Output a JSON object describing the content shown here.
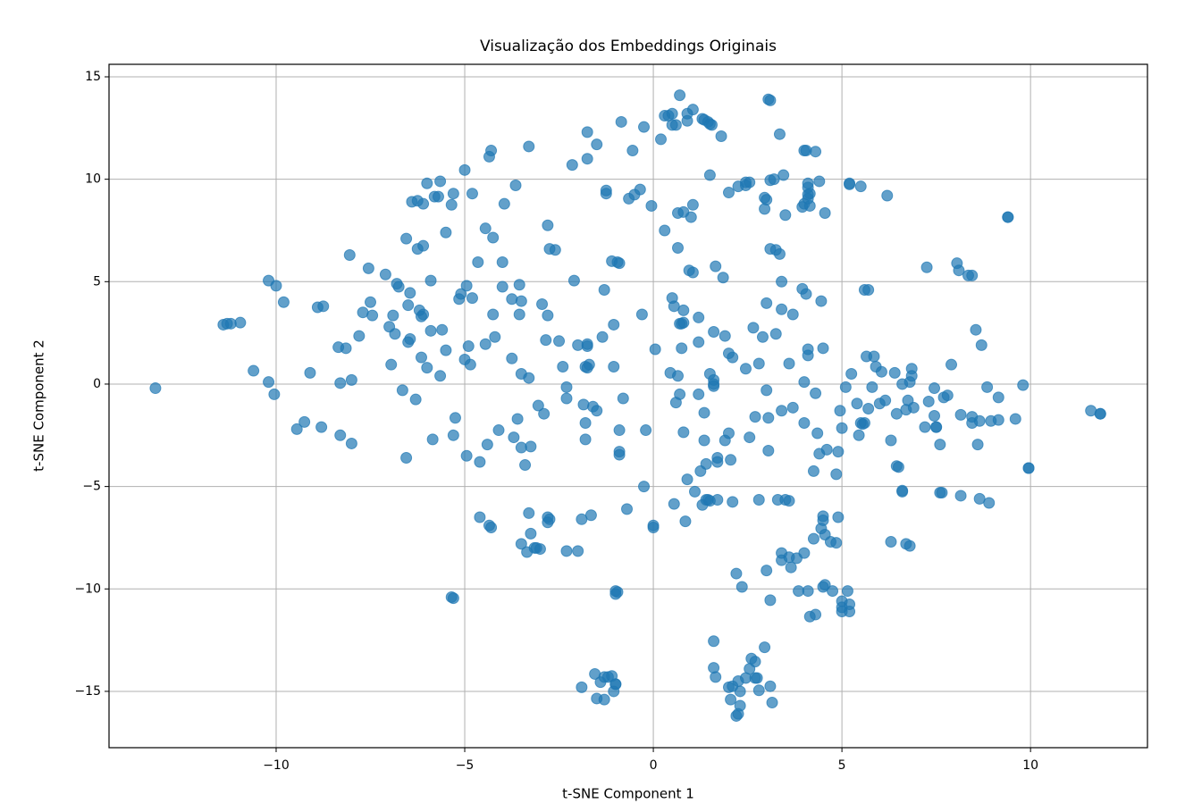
{
  "chart_data": {
    "type": "scatter",
    "title": "Visualização dos Embeddings Originais",
    "x_label": "t-SNE Component 1",
    "y_label": "t-SNE Component 2",
    "color": "#1f77b4",
    "opacity": 0.7,
    "grid": true,
    "xlim": [
      -14.43,
      13.1
    ],
    "ylim": [
      -17.75,
      15.61
    ],
    "xticks": [
      {
        "value": -10,
        "label": "−10"
      },
      {
        "value": -5,
        "label": "−5"
      },
      0,
      5,
      10
    ],
    "yticks": [
      {
        "value": -15,
        "label": "−15"
      },
      {
        "value": -10,
        "label": "−10"
      },
      {
        "value": -5,
        "label": "−5"
      },
      0,
      5,
      10,
      15
    ],
    "x": [
      -13.2,
      -11.4,
      -11.2,
      -10.95,
      -11.3,
      -10.2,
      -10.0,
      -9.8,
      -10.6,
      -10.2,
      -10.05,
      -9.45,
      -9.25,
      -9.1,
      -8.9,
      -8.75,
      -8.8,
      -8.3,
      -8.35,
      -8.15,
      -8.3,
      -8.0,
      -8.0,
      -8.05,
      -7.8,
      -7.7,
      -7.55,
      -7.5,
      -7.45,
      -7.1,
      -7.0,
      -6.9,
      -6.95,
      -6.85,
      -6.8,
      -6.75,
      -6.65,
      -6.55,
      -6.55,
      -6.45,
      -6.5,
      -6.5,
      -6.45,
      -6.4,
      -6.25,
      -6.1,
      -6.3,
      -6.25,
      -6.1,
      -6.2,
      -6.15,
      -6.15,
      -6.1,
      -6.0,
      -5.9,
      -5.9,
      -6.0,
      -5.85,
      -5.8,
      -5.7,
      -5.65,
      -5.65,
      -5.6,
      -5.5,
      -5.5,
      -5.35,
      -5.3,
      -5.25,
      -5.3,
      -5.15,
      -5.1,
      -5.0,
      -4.95,
      -5.0,
      -4.95,
      -4.9,
      -4.85,
      -4.8,
      -4.8,
      -4.65,
      -4.6,
      -4.6,
      -4.45,
      -4.45,
      -4.4,
      -4.35,
      -4.3,
      -4.35,
      -4.3,
      -4.25,
      -4.25,
      -4.2,
      -4.1,
      -4.0,
      -4.0,
      -3.95,
      -3.75,
      -3.75,
      -3.7,
      -3.65,
      -3.55,
      -3.55,
      -3.6,
      -3.5,
      -3.5,
      -3.5,
      -3.5,
      -3.4,
      -3.35,
      -3.3,
      -3.3,
      -3.25,
      -3.3,
      -3.25,
      -3.15,
      -3.1,
      -3.0,
      -2.95,
      -3.05,
      -2.9,
      -2.85,
      -2.8,
      -2.8,
      -2.75,
      -2.6,
      -2.8,
      -2.75,
      -2.8,
      -2.5,
      -2.4,
      -2.3,
      -2.3,
      -2.3,
      -2.15,
      -2.1,
      -2.0,
      -2.0,
      -1.9,
      -1.85,
      -1.8,
      -1.8,
      -1.8,
      -1.75,
      -1.75,
      -1.75,
      -1.7,
      -1.75,
      -1.75,
      -1.65,
      -1.6,
      -1.5,
      -1.5,
      -1.35,
      -1.25,
      -1.25,
      -1.3,
      -1.05,
      -1.1,
      -0.95,
      -1.05,
      -1.0,
      -0.95,
      -1.0,
      -0.9,
      -0.9,
      -0.9,
      -0.9,
      -0.85,
      -0.8,
      -0.7,
      -0.65,
      -0.5,
      -0.55,
      -0.35,
      -0.3,
      -0.25,
      -0.25,
      -0.2,
      -0.05,
      0.0,
      0.0,
      0.05,
      0.2,
      0.3,
      0.3,
      0.4,
      0.5,
      0.45,
      0.5,
      0.55,
      0.5,
      0.6,
      0.55,
      0.6,
      0.65,
      0.65,
      0.7,
      0.65,
      0.8,
      0.7,
      0.7,
      0.75,
      0.8,
      0.75,
      0.8,
      0.8,
      0.85,
      0.9,
      0.9,
      0.9,
      0.95,
      1.05,
      1.0,
      1.05,
      1.05,
      1.1,
      1.2,
      1.2,
      1.2,
      1.25,
      1.3,
      1.4,
      1.3,
      1.35,
      1.45,
      1.5,
      1.55,
      1.35,
      1.35,
      1.4,
      1.45,
      1.5,
      1.5,
      1.5,
      1.6,
      1.6,
      1.6,
      1.6,
      1.65,
      1.7,
      1.7,
      1.7,
      1.8,
      1.85,
      1.9,
      1.9,
      2.0,
      2.0,
      2.0,
      2.05,
      2.1,
      2.1,
      2.2,
      2.25,
      2.45,
      2.45,
      2.55,
      2.45,
      2.35,
      2.55,
      2.65,
      2.7,
      2.8,
      2.8,
      2.9,
      2.95,
      3.0,
      2.95,
      3.0,
      3.0,
      3.0,
      3.05,
      3.05,
      3.05,
      3.1,
      3.1,
      3.1,
      3.1,
      3.2,
      3.25,
      3.25,
      3.35,
      3.3,
      3.35,
      3.4,
      3.4,
      3.4,
      3.4,
      3.4,
      3.45,
      3.5,
      3.6,
      3.5,
      3.6,
      3.6,
      3.65,
      3.7,
      3.7,
      3.8,
      3.85,
      3.95,
      4.0,
      3.95,
      4.05,
      4.0,
      4.0,
      4.0,
      4.05,
      4.0,
      4.1,
      4.1,
      4.1,
      4.1,
      4.1,
      4.1,
      4.1,
      4.15,
      4.15,
      4.15,
      4.25,
      4.25,
      4.3,
      4.3,
      4.3,
      4.35,
      4.4,
      4.4,
      4.45,
      4.5,
      4.5,
      4.45,
      4.5,
      4.5,
      4.55,
      4.55,
      4.55,
      4.6,
      4.7,
      4.75,
      4.85,
      4.85,
      4.9,
      4.9,
      4.95,
      5.0,
      5.0,
      5.0,
      5.0,
      5.1,
      5.15,
      5.2,
      5.2,
      5.2,
      5.2,
      5.25,
      5.4,
      5.45,
      5.5,
      5.5,
      5.55,
      5.6,
      5.6,
      5.7,
      5.65,
      5.85,
      5.7,
      5.8,
      5.9,
      6.0,
      6.05,
      6.15,
      6.2,
      6.3,
      6.3,
      6.4,
      6.45,
      6.45,
      6.5,
      6.6,
      6.6,
      6.6,
      6.7,
      6.7,
      6.8,
      6.75,
      6.8,
      6.85,
      6.85,
      6.9,
      7.2,
      7.25,
      7.3,
      7.45,
      7.45,
      7.5,
      7.5,
      7.6,
      7.6,
      7.65,
      7.7,
      7.8,
      7.9,
      8.05,
      8.1,
      8.35,
      8.45,
      8.15,
      8.15,
      8.45,
      8.45,
      8.55,
      8.6,
      8.65,
      8.7,
      8.65,
      8.9,
      8.85,
      8.95,
      9.15,
      9.15,
      9.4,
      9.4,
      9.6,
      9.8,
      9.95,
      9.95,
      11.6,
      11.85,
      11.85,
      -5.35,
      -5.3,
      -1.9,
      -1.55,
      -1.4,
      -1.3,
      -1.2,
      -1.5,
      -1.3,
      -1.1,
      -1.05,
      -1.0,
      -1.0,
      1.6,
      1.6,
      1.65,
      2.0,
      2.1,
      2.05,
      2.2,
      2.25,
      2.3,
      2.25,
      2.3,
      2.45,
      2.55,
      2.6,
      2.7,
      2.7,
      2.75,
      2.8,
      2.95,
      3.1,
      3.15
    ],
    "values": [
      -0.2,
      2.9,
      2.95,
      3.0,
      2.95,
      5.05,
      4.8,
      4.0,
      0.65,
      0.1,
      -0.5,
      -2.2,
      -1.85,
      0.55,
      3.75,
      3.8,
      -2.1,
      -2.5,
      1.8,
      1.75,
      0.05,
      0.2,
      -2.9,
      6.3,
      2.35,
      3.5,
      5.65,
      4.0,
      3.35,
      5.35,
      2.8,
      3.35,
      0.95,
      2.45,
      4.9,
      4.75,
      -0.3,
      7.1,
      -3.6,
      4.45,
      3.85,
      2.05,
      2.2,
      8.9,
      8.95,
      8.8,
      -0.75,
      6.6,
      6.75,
      3.6,
      3.3,
      1.3,
      3.4,
      0.8,
      2.6,
      5.05,
      9.8,
      -2.7,
      9.15,
      9.15,
      9.9,
      0.4,
      2.65,
      1.65,
      7.4,
      8.75,
      9.3,
      -1.65,
      -2.5,
      4.15,
      4.4,
      10.45,
      4.8,
      1.2,
      -3.5,
      1.85,
      0.95,
      9.3,
      4.2,
      5.95,
      -3.8,
      -6.5,
      1.95,
      7.6,
      -2.95,
      11.1,
      11.4,
      -6.9,
      -7.0,
      7.15,
      3.4,
      2.3,
      -2.25,
      5.95,
      4.75,
      8.8,
      1.25,
      4.15,
      -2.6,
      9.7,
      4.85,
      3.4,
      -1.7,
      0.5,
      -3.1,
      -7.8,
      4.05,
      -3.95,
      -8.2,
      0.3,
      11.6,
      -3.05,
      -6.3,
      -7.3,
      -8.0,
      -8.0,
      -8.05,
      3.9,
      -1.05,
      -1.45,
      2.15,
      3.35,
      7.75,
      6.6,
      6.55,
      -6.5,
      -6.6,
      -6.75,
      2.1,
      0.85,
      -0.15,
      -0.7,
      -8.15,
      10.7,
      5.05,
      1.9,
      -8.15,
      -6.6,
      -1.0,
      -1.9,
      -2.7,
      0.85,
      0.8,
      11.0,
      12.3,
      0.95,
      1.85,
      1.95,
      -6.4,
      -1.1,
      11.7,
      -1.3,
      2.3,
      9.3,
      9.45,
      4.6,
      2.9,
      6.0,
      5.95,
      0.85,
      -10.1,
      -10.15,
      -10.25,
      5.9,
      -2.25,
      -3.3,
      -3.45,
      12.8,
      -0.7,
      -6.1,
      9.05,
      9.25,
      11.4,
      9.5,
      3.4,
      12.55,
      -5.0,
      -2.25,
      8.7,
      -7.0,
      -6.9,
      1.7,
      11.95,
      13.1,
      7.5,
      13.1,
      13.2,
      0.55,
      4.2,
      3.8,
      12.65,
      12.65,
      -5.85,
      -0.9,
      0.4,
      6.65,
      14.1,
      8.35,
      8.4,
      -0.5,
      2.95,
      2.95,
      3.0,
      1.75,
      3.6,
      -2.35,
      -6.7,
      -4.65,
      13.2,
      12.85,
      5.55,
      5.45,
      8.15,
      8.75,
      13.4,
      -5.25,
      -0.5,
      2.05,
      3.25,
      -4.25,
      -5.9,
      -5.65,
      12.95,
      12.9,
      12.8,
      12.7,
      12.65,
      -1.4,
      -2.75,
      -3.9,
      -5.65,
      -5.7,
      10.2,
      0.5,
      0.2,
      0.0,
      2.55,
      -0.1,
      5.75,
      -3.6,
      -3.8,
      -5.65,
      12.1,
      5.2,
      2.35,
      -2.75,
      1.5,
      -2.4,
      9.35,
      -3.7,
      -5.75,
      1.3,
      -9.25,
      9.65,
      9.7,
      9.85,
      9.85,
      0.75,
      -9.9,
      -2.6,
      2.75,
      -1.6,
      1.0,
      -5.65,
      2.3,
      9.1,
      9.0,
      8.55,
      -0.3,
      3.95,
      -9.1,
      -1.65,
      -3.25,
      13.9,
      13.85,
      6.6,
      -10.55,
      9.95,
      10.0,
      2.45,
      6.55,
      6.35,
      -5.65,
      12.2,
      5.0,
      3.65,
      -1.3,
      -8.25,
      -8.6,
      10.2,
      -5.65,
      -5.7,
      8.25,
      1.0,
      -8.45,
      -8.95,
      3.4,
      -1.15,
      -8.5,
      -10.1,
      8.65,
      8.8,
      4.65,
      4.4,
      0.1,
      -1.9,
      11.4,
      11.4,
      -8.25,
      1.7,
      1.4,
      -10.1,
      9.8,
      9.6,
      9.25,
      9.05,
      9.3,
      8.7,
      -11.35,
      -7.55,
      -4.25,
      -0.45,
      -11.25,
      11.35,
      -2.4,
      -3.4,
      9.9,
      -7.05,
      -6.45,
      -6.65,
      4.05,
      1.75,
      -9.9,
      -9.8,
      8.35,
      -7.35,
      -3.2,
      -7.7,
      -10.1,
      -4.4,
      -7.75,
      -6.5,
      -3.3,
      -1.3,
      -2.15,
      -10.6,
      -10.9,
      -11.1,
      -0.15,
      -10.1,
      -10.75,
      -11.1,
      9.8,
      9.75,
      0.5,
      -0.95,
      -2.5,
      -1.9,
      9.65,
      -1.95,
      -1.9,
      4.6,
      4.6,
      1.35,
      1.35,
      -1.2,
      -0.15,
      0.85,
      -0.95,
      0.6,
      -0.8,
      9.2,
      -2.75,
      -7.7,
      0.55,
      -1.45,
      -4.0,
      -4.05,
      -5.25,
      -5.2,
      0.0,
      -1.25,
      -7.8,
      -7.9,
      -0.8,
      0.1,
      0.75,
      0.4,
      -1.15,
      -2.1,
      5.7,
      -0.85,
      -0.2,
      -1.55,
      -2.1,
      -2.1,
      -2.95,
      -5.3,
      -5.3,
      -0.65,
      -0.55,
      0.95,
      5.9,
      5.55,
      5.3,
      5.3,
      -1.5,
      -5.45,
      -1.6,
      -1.9,
      2.65,
      -2.95,
      -1.8,
      1.9,
      -5.6,
      -5.8,
      -0.15,
      -1.8,
      -0.65,
      -1.75,
      8.15,
      8.15,
      -1.7,
      -0.05,
      -4.1,
      -4.1,
      -1.3,
      -1.45,
      -1.45,
      -10.4,
      -10.45,
      -14.8,
      -14.15,
      -14.55,
      -14.3,
      -14.3,
      -15.35,
      -15.4,
      -14.25,
      -15.0,
      -14.65,
      -14.65,
      -12.55,
      -13.85,
      -14.3,
      -14.8,
      -14.75,
      -15.4,
      -16.2,
      -16.1,
      -15.7,
      -14.5,
      -15.0,
      -14.35,
      -13.9,
      -13.4,
      -13.55,
      -14.35,
      -14.35,
      -14.95,
      -12.85,
      -14.75,
      -15.55
    ]
  }
}
